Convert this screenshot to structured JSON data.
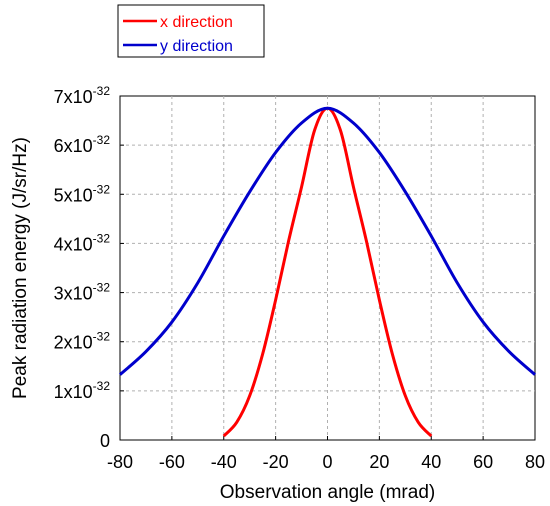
{
  "chart_data": {
    "type": "line",
    "xlabel": "Observation angle (mrad)",
    "ylabel": "Peak radiation energy (J/sr/Hz)",
    "xlim": [
      -80,
      80
    ],
    "ylim": [
      0,
      7
    ],
    "y_unit_multiplier": "x10^-32",
    "x_ticks": [
      "-80",
      "-60",
      "-40",
      "-20",
      "0",
      "20",
      "40",
      "60",
      "80"
    ],
    "y_ticks": [
      {
        "mantissa": "0",
        "exp": ""
      },
      {
        "mantissa": "1x10",
        "exp": "-32"
      },
      {
        "mantissa": "2x10",
        "exp": "-32"
      },
      {
        "mantissa": "3x10",
        "exp": "-32"
      },
      {
        "mantissa": "4x10",
        "exp": "-32"
      },
      {
        "mantissa": "5x10",
        "exp": "-32"
      },
      {
        "mantissa": "6x10",
        "exp": "-32"
      },
      {
        "mantissa": "7x10",
        "exp": "-32"
      }
    ],
    "grid": true,
    "legend_position": "top-left, outside plot",
    "series": [
      {
        "name": "x direction",
        "color": "#ff0000",
        "x": [
          -40,
          -35,
          -30,
          -25,
          -20,
          -15,
          -10,
          -5,
          0,
          5,
          10,
          15,
          20,
          25,
          30,
          35,
          40
        ],
        "y": [
          0.08,
          0.36,
          0.9,
          1.75,
          2.85,
          4.05,
          5.15,
          6.3,
          6.75,
          6.3,
          5.15,
          4.05,
          2.85,
          1.75,
          0.9,
          0.36,
          0.08
        ]
      },
      {
        "name": "y direction",
        "color": "#0000cc",
        "x": [
          -80,
          -70,
          -60,
          -50,
          -40,
          -30,
          -20,
          -10,
          0,
          10,
          20,
          30,
          40,
          50,
          60,
          70,
          80
        ],
        "y": [
          1.33,
          1.8,
          2.4,
          3.2,
          4.15,
          5.05,
          5.85,
          6.45,
          6.75,
          6.45,
          5.85,
          5.05,
          4.15,
          3.2,
          2.4,
          1.8,
          1.33
        ]
      }
    ]
  }
}
